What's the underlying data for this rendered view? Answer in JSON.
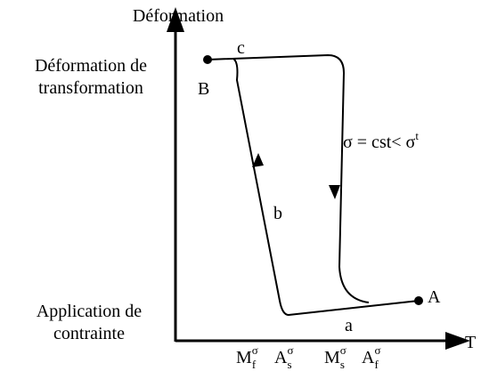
{
  "axes": {
    "y_label": "Déformation",
    "x_label": "T"
  },
  "left_labels": {
    "top": [
      "Déformation de",
      "transformation"
    ],
    "bottom": [
      "Application de",
      "contrainte"
    ]
  },
  "point_labels": [
    "B",
    "A"
  ],
  "branch_labels": [
    "c",
    "b",
    "a"
  ],
  "condition": {
    "base": "σ = cst< σ",
    "sup": "t"
  },
  "temperatures": [
    {
      "base": "M",
      "sup": "σ",
      "sub": "f"
    },
    {
      "base": "A",
      "sup": "σ",
      "sub": "s"
    },
    {
      "base": "M",
      "sup": "σ",
      "sub": "s"
    },
    {
      "base": "A",
      "sup": "σ",
      "sub": "f"
    }
  ]
}
